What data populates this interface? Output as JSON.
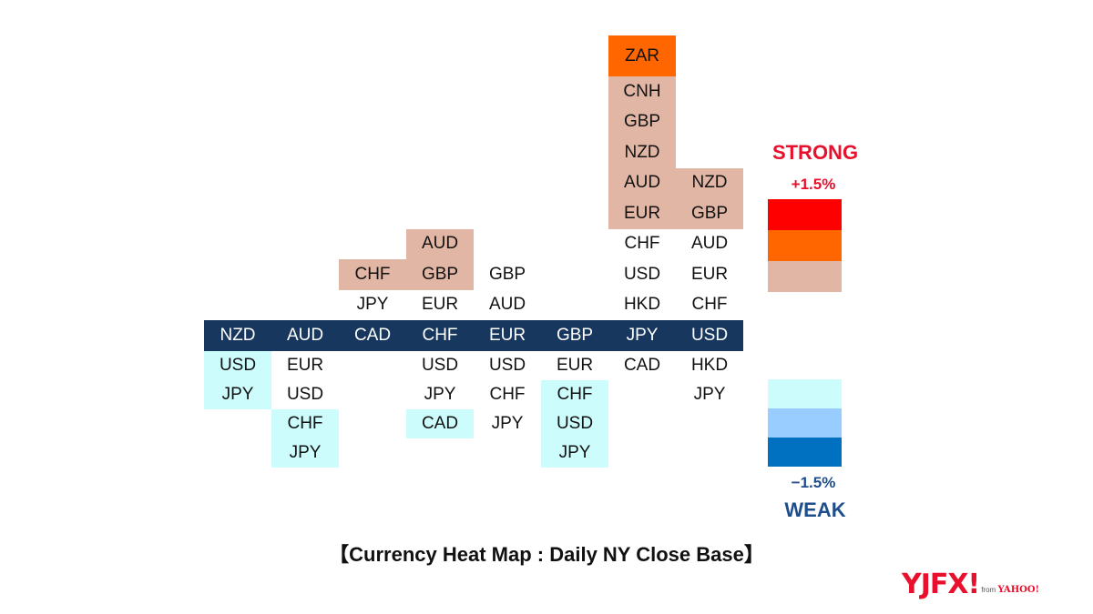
{
  "chart_data": {
    "type": "heatmap",
    "title": "【Currency Heat Map : Daily NY Close Base】",
    "columns": [
      {
        "base": "NZD",
        "above": [],
        "below": [
          {
            "currency": "USD",
            "level": "weak1"
          },
          {
            "currency": "JPY",
            "level": "weak1"
          }
        ]
      },
      {
        "base": "AUD",
        "above": [],
        "below": [
          {
            "currency": "EUR",
            "level": "neutral"
          },
          {
            "currency": "USD",
            "level": "neutral"
          },
          {
            "currency": "CHF",
            "level": "weak1"
          },
          {
            "currency": "JPY",
            "level": "weak1"
          }
        ]
      },
      {
        "base": "CAD",
        "above": [
          {
            "currency": "JPY",
            "level": "neutral"
          },
          {
            "currency": "CHF",
            "level": "strong1"
          }
        ],
        "below": []
      },
      {
        "base": "CHF",
        "above": [
          {
            "currency": "EUR",
            "level": "neutral"
          },
          {
            "currency": "GBP",
            "level": "strong1"
          },
          {
            "currency": "AUD",
            "level": "strong1"
          }
        ],
        "below": [
          {
            "currency": "USD",
            "level": "neutral"
          },
          {
            "currency": "JPY",
            "level": "neutral"
          },
          {
            "currency": "CAD",
            "level": "weak1"
          }
        ]
      },
      {
        "base": "EUR",
        "above": [
          {
            "currency": "AUD",
            "level": "neutral"
          },
          {
            "currency": "GBP",
            "level": "neutral"
          }
        ],
        "below": [
          {
            "currency": "USD",
            "level": "neutral"
          },
          {
            "currency": "CHF",
            "level": "neutral"
          },
          {
            "currency": "JPY",
            "level": "neutral"
          }
        ]
      },
      {
        "base": "GBP",
        "above": [],
        "below": [
          {
            "currency": "EUR",
            "level": "neutral"
          },
          {
            "currency": "CHF",
            "level": "weak1"
          },
          {
            "currency": "USD",
            "level": "weak1"
          },
          {
            "currency": "JPY",
            "level": "weak1"
          }
        ]
      },
      {
        "base": "JPY",
        "above": [
          {
            "currency": "HKD",
            "level": "neutral"
          },
          {
            "currency": "USD",
            "level": "neutral"
          },
          {
            "currency": "CHF",
            "level": "neutral"
          },
          {
            "currency": "EUR",
            "level": "strong1"
          },
          {
            "currency": "AUD",
            "level": "strong1"
          },
          {
            "currency": "NZD",
            "level": "strong1"
          },
          {
            "currency": "GBP",
            "level": "strong1"
          },
          {
            "currency": "CNH",
            "level": "strong1"
          },
          {
            "currency": "ZAR",
            "level": "strong2"
          }
        ],
        "below": [
          {
            "currency": "CAD",
            "level": "neutral"
          }
        ]
      },
      {
        "base": "USD",
        "above": [
          {
            "currency": "CHF",
            "level": "neutral"
          },
          {
            "currency": "EUR",
            "level": "neutral"
          },
          {
            "currency": "AUD",
            "level": "neutral"
          },
          {
            "currency": "GBP",
            "level": "strong1"
          },
          {
            "currency": "NZD",
            "level": "strong1"
          }
        ],
        "below": [
          {
            "currency": "HKD",
            "level": "neutral"
          },
          {
            "currency": "JPY",
            "level": "neutral"
          }
        ]
      }
    ],
    "level_colors": {
      "strong3": "#ff0000",
      "strong2": "#ff6600",
      "strong1": "#e2b6a4",
      "neutral": "#ffffff",
      "weak1": "#ccfcfc",
      "weak2": "#99ccff",
      "weak3": "#0070c0"
    },
    "base_row_color": "#17375e",
    "legend": {
      "strong_label": "STRONG",
      "strong_value": "+1.5%",
      "weak_label": "WEAK",
      "weak_value": "−1.5%",
      "strong_label_color": "#e8102d",
      "weak_label_color": "#1f4e8c",
      "value_color_strong": "#e8102d",
      "value_color_weak": "#1f4e8c",
      "strong_swatches": [
        "#ff0000",
        "#ff6600",
        "#e2b6a4"
      ],
      "weak_swatches": [
        "#ccfcfc",
        "#99ccff",
        "#0070c0"
      ]
    }
  },
  "logo": {
    "main": "YJFX!",
    "sub_from": "from",
    "sub_brand": "YAHOO!"
  }
}
